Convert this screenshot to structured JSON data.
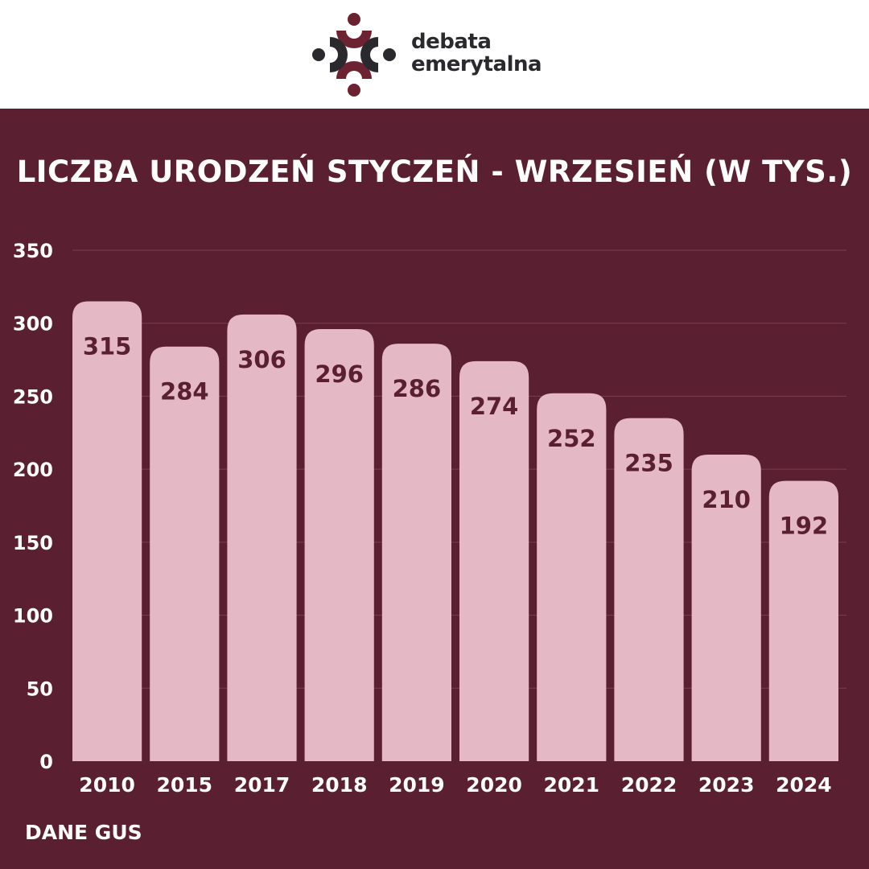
{
  "brand": {
    "line1": "debata",
    "line2": "emerytalna",
    "logo_icon": "people-circle-logo-icon",
    "colors": {
      "maroon": "#6d2232",
      "dark": "#2a2a2e"
    }
  },
  "footer": {
    "source": "DANE GUS"
  },
  "colors": {
    "background": "#5a1f31",
    "bar": "#e4b8c5",
    "bar_label": "#5a1f31",
    "text": "#ffffff",
    "grid": "#7a3f50"
  },
  "chart_data": {
    "type": "bar",
    "title": "LICZBA URODZEŃ STYCZEŃ - WRZESIEŃ (W TYS.)",
    "xlabel": "",
    "ylabel": "",
    "categories": [
      "2010",
      "2015",
      "2017",
      "2018",
      "2019",
      "2020",
      "2021",
      "2022",
      "2023",
      "2024"
    ],
    "values": [
      315,
      284,
      306,
      296,
      286,
      274,
      252,
      235,
      210,
      192
    ],
    "ylim": [
      0,
      350
    ],
    "yticks": [
      0,
      50,
      100,
      150,
      200,
      250,
      300,
      350
    ],
    "grid": true,
    "data_labels": true
  }
}
